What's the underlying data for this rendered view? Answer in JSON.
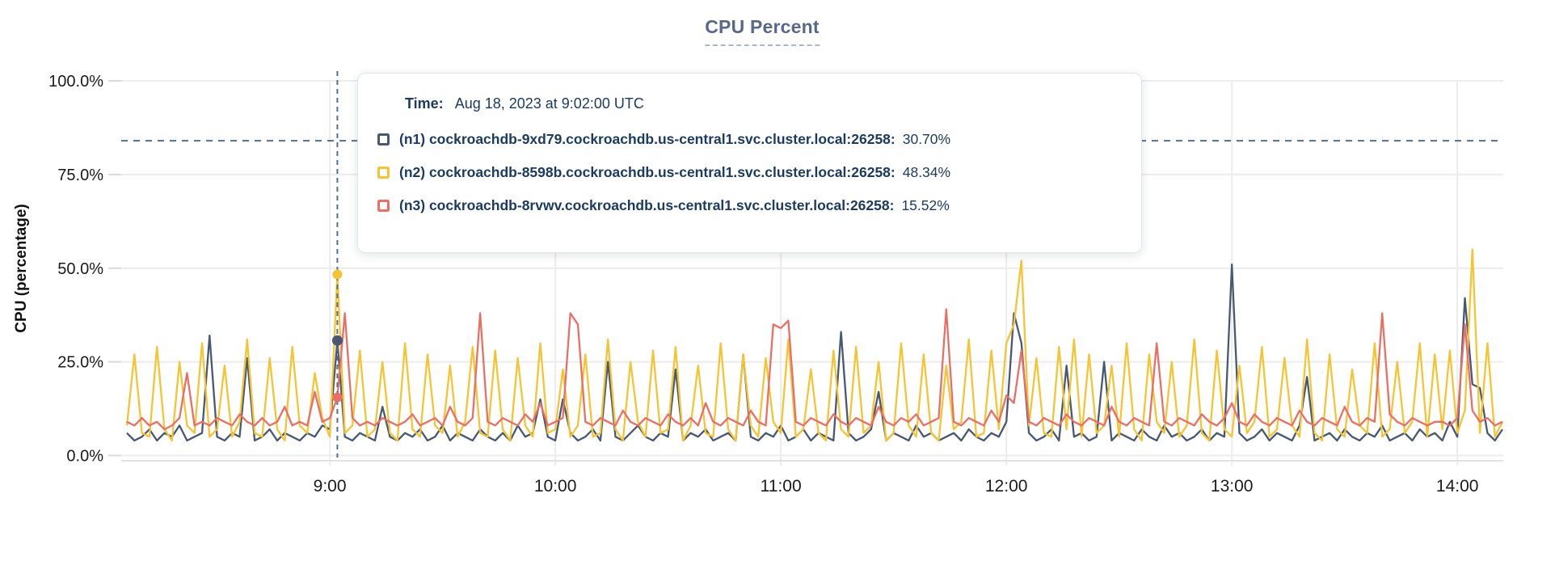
{
  "title": "CPU Percent",
  "y_axis": {
    "label": "CPU (percentage)",
    "ticks": [
      {
        "label": "100.0%",
        "value": 100
      },
      {
        "label": "75.0%",
        "value": 75
      },
      {
        "label": "50.0%",
        "value": 50
      },
      {
        "label": "25.0%",
        "value": 25
      },
      {
        "label": "0.0%",
        "value": 0
      }
    ]
  },
  "x_axis": {
    "ticks": [
      {
        "label": "9:00",
        "minutes": 54
      },
      {
        "label": "10:00",
        "minutes": 114
      },
      {
        "label": "11:00",
        "minutes": 174
      },
      {
        "label": "12:00",
        "minutes": 234
      },
      {
        "label": "13:00",
        "minutes": 294
      },
      {
        "label": "14:00",
        "minutes": 354
      }
    ]
  },
  "colors": {
    "n1": "#475872",
    "n2": "#F5C433",
    "n3": "#E96F66",
    "grid": "#ECECEC",
    "axis_baseline": "#E2E2E2",
    "tick_stub": "#D9D9D9",
    "dashed_guide": "#537089",
    "tick_text": "#1A1A1A",
    "tooltip_text": "#1B3B60",
    "title_text": "#57678E"
  },
  "tooltip": {
    "time_label": "Time:",
    "time_value": "Aug 18, 2023 at 9:02:00 UTC",
    "series": [
      {
        "name": "(n1) cockroachdb-9xd79.cockroachdb.us-central1.svc.cluster.local:26258:",
        "value": "30.70%",
        "color": "#475872"
      },
      {
        "name": "(n2) cockroachdb-8598b.cockroachdb.us-central1.svc.cluster.local:26258:",
        "value": "48.34%",
        "color": "#F5C433"
      },
      {
        "name": "(n3) cockroachdb-8rvwv.cockroachdb.us-central1.svc.cluster.local:26258:",
        "value": "15.52%",
        "color": "#E96F66"
      }
    ]
  },
  "chart_data": {
    "type": "line",
    "title": "CPU Percent",
    "xlabel": "",
    "ylabel": "CPU (percentage)",
    "ylim": [
      0,
      100
    ],
    "grid": true,
    "threshold_percent": 84,
    "x_start_minutes": 0,
    "x_step_minutes": 2,
    "x_note": "minute 0 = 8:06 UTC; 9:00 = minute 54; samples every 2 minutes through 14:12",
    "crosshair": {
      "minutes": 56,
      "time": "Aug 18, 2023 at 9:02:00 UTC",
      "points": [
        {
          "series": "n2",
          "value": 48.34
        },
        {
          "series": "n1",
          "value": 30.7
        },
        {
          "series": "n3",
          "value": 15.52
        }
      ]
    },
    "series": [
      {
        "id": "n1",
        "name": "(n1) cockroachdb-9xd79.cockroachdb.us-central1.svc.cluster.local:26258",
        "color": "#475872",
        "values": [
          6,
          4,
          5,
          7,
          4,
          6,
          5,
          8,
          4,
          5,
          6,
          32,
          5,
          4,
          6,
          5,
          26,
          4,
          5,
          7,
          4,
          6,
          5,
          4,
          6,
          5,
          8,
          7,
          30.7,
          5,
          4,
          6,
          5,
          4,
          13,
          5,
          4,
          6,
          5,
          7,
          4,
          5,
          8,
          4,
          6,
          5,
          4,
          7,
          5,
          4,
          6,
          4,
          8,
          5,
          6,
          15,
          5,
          4,
          15,
          6,
          4,
          5,
          7,
          4,
          25,
          5,
          4,
          6,
          8,
          5,
          4,
          6,
          5,
          23,
          4,
          6,
          5,
          7,
          4,
          5,
          6,
          4,
          27,
          5,
          4,
          6,
          5,
          8,
          4,
          5,
          7,
          4,
          6,
          5,
          4,
          33,
          6,
          4,
          5,
          7,
          17,
          4,
          6,
          5,
          4,
          8,
          5,
          6,
          4,
          5,
          6,
          4,
          7,
          5,
          4,
          6,
          5,
          9,
          38,
          30,
          6,
          4,
          5,
          7,
          4,
          24,
          5,
          6,
          4,
          5,
          25,
          4,
          6,
          5,
          4,
          7,
          5,
          4,
          8,
          5,
          6,
          4,
          5,
          7,
          4,
          6,
          5,
          51,
          6,
          4,
          5,
          7,
          4,
          6,
          5,
          4,
          8,
          21,
          4,
          5,
          6,
          4,
          7,
          5,
          4,
          6,
          5,
          8,
          4,
          5,
          6,
          4,
          7,
          5,
          6,
          4,
          9,
          5,
          42,
          19,
          18,
          6,
          4,
          7
        ]
      },
      {
        "id": "n2",
        "name": "(n2) cockroachdb-8598b.cockroachdb.us-central1.svc.cluster.local:26258",
        "color": "#F5C433",
        "values": [
          8,
          27,
          6,
          5,
          29,
          7,
          4,
          25,
          8,
          6,
          30,
          5,
          7,
          24,
          5,
          9,
          31,
          6,
          5,
          26,
          7,
          4,
          29,
          8,
          6,
          22,
          10,
          5,
          48.3,
          6,
          8,
          28,
          5,
          7,
          25,
          6,
          4,
          30,
          7,
          5,
          27,
          8,
          6,
          24,
          5,
          9,
          29,
          6,
          5,
          28,
          7,
          4,
          26,
          8,
          5,
          30,
          6,
          7,
          23,
          5,
          8,
          27,
          5,
          6,
          31,
          7,
          4,
          25,
          9,
          5,
          28,
          6,
          7,
          29,
          4,
          8,
          24,
          6,
          5,
          30,
          7,
          4,
          27,
          8,
          5,
          26,
          9,
          6,
          31,
          5,
          7,
          23,
          6,
          4,
          28,
          7,
          5,
          29,
          6,
          8,
          25,
          4,
          6,
          30,
          8,
          5,
          27,
          6,
          4,
          24,
          7,
          9,
          31,
          5,
          6,
          28,
          7,
          30,
          35,
          52,
          8,
          26,
          6,
          5,
          29,
          7,
          31,
          5,
          27,
          6,
          8,
          24,
          5,
          30,
          7,
          4,
          27,
          9,
          6,
          25,
          5,
          8,
          31,
          6,
          4,
          28,
          7,
          5,
          24,
          6,
          9,
          29,
          5,
          7,
          26,
          8,
          5,
          31,
          6,
          4,
          27,
          7,
          5,
          23,
          8,
          6,
          30,
          5,
          7,
          25,
          6,
          9,
          30,
          5,
          27,
          7,
          28,
          6,
          12,
          55,
          6,
          30,
          5,
          9
        ]
      },
      {
        "id": "n3",
        "name": "(n3) cockroachdb-8rvwv.cockroachdb.us-central1.svc.cluster.local:26258",
        "color": "#E96F66",
        "values": [
          9,
          8,
          10,
          8,
          9,
          7,
          8,
          10,
          22,
          8,
          9,
          8,
          10,
          9,
          8,
          11,
          9,
          8,
          10,
          8,
          9,
          13,
          8,
          9,
          8,
          17,
          9,
          10,
          15.5,
          38,
          10,
          8,
          9,
          8,
          10,
          9,
          8,
          9,
          11,
          8,
          9,
          10,
          8,
          13,
          9,
          8,
          10,
          38,
          9,
          8,
          10,
          9,
          8,
          11,
          9,
          14,
          8,
          9,
          10,
          38,
          35,
          9,
          8,
          10,
          9,
          8,
          12,
          9,
          8,
          10,
          9,
          8,
          11,
          9,
          8,
          10,
          8,
          14,
          9,
          8,
          10,
          9,
          8,
          12,
          9,
          8,
          35,
          34,
          36,
          9,
          8,
          10,
          9,
          8,
          11,
          9,
          8,
          10,
          9,
          8,
          13,
          9,
          8,
          10,
          9,
          11,
          8,
          9,
          10,
          39,
          9,
          8,
          10,
          9,
          8,
          12,
          9,
          16,
          14,
          28,
          9,
          8,
          10,
          9,
          8,
          11,
          9,
          8,
          10,
          9,
          8,
          13,
          9,
          8,
          10,
          9,
          8,
          30,
          9,
          8,
          10,
          9,
          8,
          11,
          9,
          8,
          10,
          14,
          9,
          8,
          11,
          9,
          8,
          10,
          9,
          8,
          12,
          9,
          8,
          10,
          9,
          8,
          13,
          9,
          8,
          10,
          9,
          38,
          11,
          9,
          8,
          10,
          9,
          8,
          9,
          9,
          8,
          10,
          35,
          12,
          9,
          10,
          8,
          9
        ]
      }
    ]
  }
}
